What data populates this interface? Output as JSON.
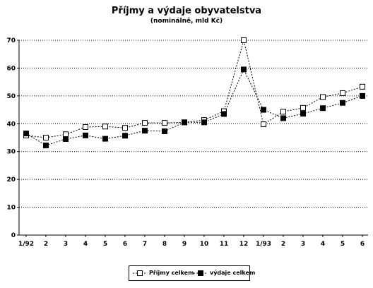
{
  "chart_data": {
    "type": "line",
    "title": "Příjmy a výdaje obyvatelstva",
    "subtitle": "(nominálně, mld Kč)",
    "categories": [
      "1/92",
      "2",
      "3",
      "4",
      "5",
      "6",
      "7",
      "8",
      "9",
      "10",
      "11",
      "12",
      "1/93",
      "2",
      "3",
      "4",
      "5",
      "6"
    ],
    "ylim": [
      0,
      70
    ],
    "yticks": [
      0,
      10,
      20,
      30,
      40,
      50,
      60,
      70
    ],
    "grid": true,
    "legend_position": "bottom",
    "series": [
      {
        "name": "Příjmy celkem",
        "marker": "open-square",
        "values": [
          35.8,
          35.0,
          36.2,
          38.8,
          39.0,
          38.5,
          40.3,
          40.3,
          40.5,
          41.3,
          44.5,
          70.0,
          39.8,
          44.3,
          45.7,
          49.6,
          51.0,
          53.3
        ]
      },
      {
        "name": "výdaje celkem",
        "marker": "filled-square",
        "values": [
          36.5,
          32.2,
          34.5,
          35.8,
          34.6,
          35.7,
          37.5,
          37.3,
          40.5,
          40.5,
          43.5,
          59.5,
          45.0,
          42.0,
          43.6,
          45.6,
          47.5,
          50.0
        ]
      }
    ]
  }
}
